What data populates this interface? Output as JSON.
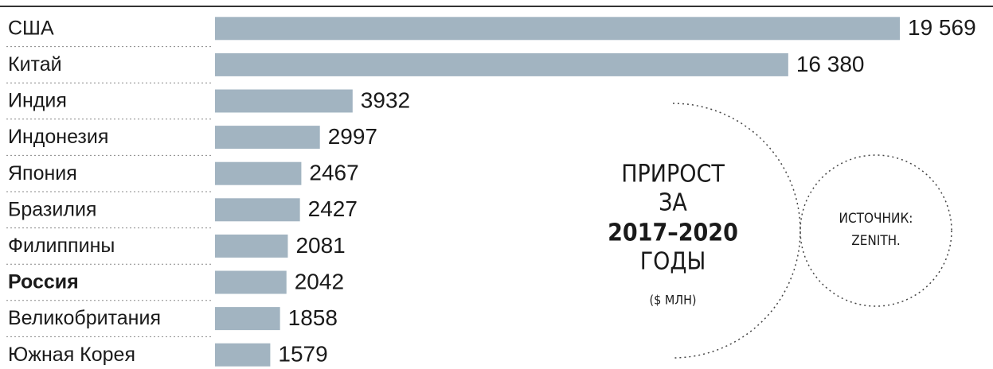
{
  "chart_data": {
    "type": "bar",
    "orientation": "horizontal",
    "categories": [
      "США",
      "Китай",
      "Индия",
      "Индонезия",
      "Япония",
      "Бразилия",
      "Филиппины",
      "Россия",
      "Великобритания",
      "Южная Корея"
    ],
    "values": [
      19569,
      16380,
      3932,
      2997,
      2467,
      2427,
      2081,
      2042,
      1858,
      1579
    ],
    "value_labels": [
      "19 569",
      "16 380",
      "3932",
      "2997",
      "2467",
      "2427",
      "2081",
      "2042",
      "1858",
      "1579"
    ],
    "color": "#a2b4c1",
    "highlight": "Россия",
    "annotation": {
      "title": [
        "ПРИРОСТ",
        "ЗА",
        "2017–2020",
        "ГОДЫ"
      ],
      "unit": "($ МЛН)",
      "source": [
        "ИСТОЧНИК:",
        "ZENITH."
      ]
    }
  }
}
